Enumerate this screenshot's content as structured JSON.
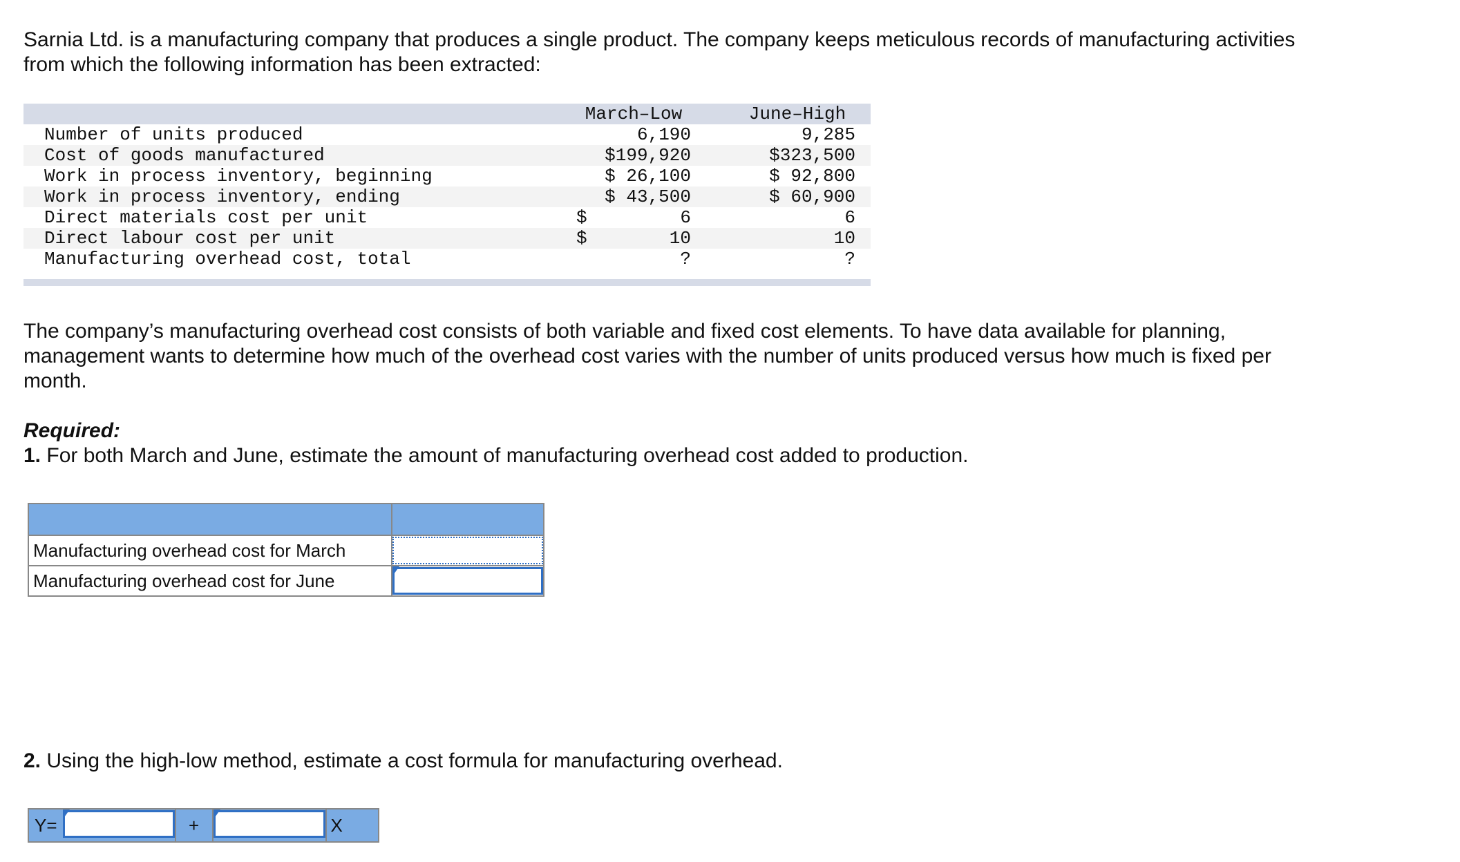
{
  "intro": "Sarnia Ltd. is a manufacturing company that produces a single product. The company keeps meticulous records of manufacturing activities from which the following information has been extracted:",
  "data_table": {
    "headers": {
      "march": "March–Low",
      "june": "June–High"
    },
    "rows": [
      {
        "label": "Number of units produced",
        "march": "6,190",
        "june": "9,285"
      },
      {
        "label": "Cost of goods manufactured",
        "march": "$199,920",
        "june": "$323,500"
      },
      {
        "label": "Work in process inventory, beginning",
        "march": "$ 26,100",
        "june": "$ 92,800"
      },
      {
        "label": "Work in process inventory, ending",
        "march": "$ 43,500",
        "june": "$ 60,900"
      },
      {
        "label": "Direct materials cost per unit",
        "march_dollar": "$",
        "march": "6",
        "june": "6"
      },
      {
        "label": "Direct labour cost per unit",
        "march_dollar": "$",
        "march": "10",
        "june": "10"
      },
      {
        "label": "Manufacturing overhead cost, total",
        "march": "?",
        "june": "?"
      }
    ]
  },
  "overhead_paragraph": "The company’s manufacturing overhead cost consists of both variable and fixed cost elements. To have data available for planning, management wants to determine how much of the overhead cost varies with the number of units produced versus how much is fixed per month.",
  "required_label": "Required:",
  "q1": {
    "num": "1.",
    "text": " For both March and June, estimate the amount of manufacturing overhead cost added to production."
  },
  "answer_table": {
    "rows": [
      {
        "label": "Manufacturing overhead cost for March",
        "value": ""
      },
      {
        "label": "Manufacturing overhead cost for June",
        "value": ""
      }
    ]
  },
  "q2": {
    "num": "2.",
    "text": " Using the high-low method, estimate a cost formula for manufacturing overhead."
  },
  "formula": {
    "y_label": "Y=",
    "plus": "+",
    "x_label": "X",
    "fixed_value": "",
    "variable_value": ""
  },
  "colors": {
    "header_band": "#d6dbe7",
    "answer_header": "#7aabe3",
    "input_border": "#2f6fc4"
  }
}
